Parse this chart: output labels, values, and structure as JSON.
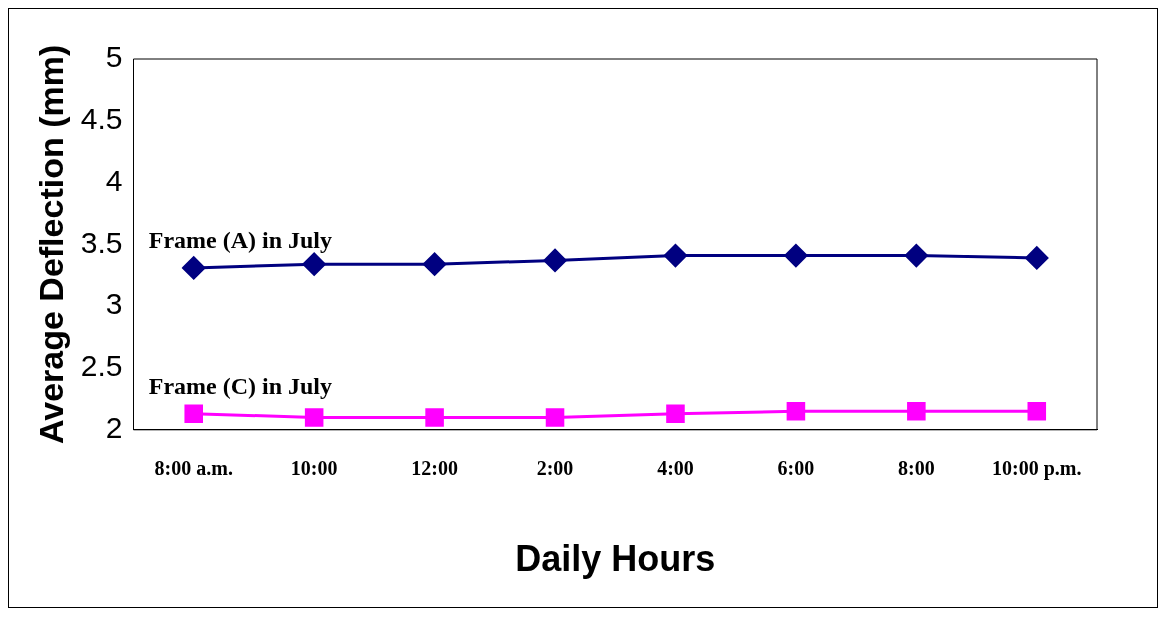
{
  "chart_data": {
    "type": "line",
    "xlabel": "Daily Hours",
    "ylabel": "Average Deflection (mm)",
    "categories": [
      "8:00 a.m.",
      "10:00",
      "12:00",
      "2:00",
      "4:00",
      "6:00",
      "8:00",
      "10:00 p.m."
    ],
    "series": [
      {
        "name": "Frame (A) in July",
        "color": "#000080",
        "marker": "diamond",
        "values": [
          3.31,
          3.34,
          3.34,
          3.37,
          3.41,
          3.41,
          3.41,
          3.39
        ]
      },
      {
        "name": "Frame (C) in July",
        "color": "#ff00ff",
        "marker": "square",
        "values": [
          2.13,
          2.1,
          2.1,
          2.1,
          2.13,
          2.15,
          2.15,
          2.15
        ]
      }
    ],
    "ylim": [
      2,
      5
    ],
    "yticks": [
      2,
      2.5,
      3,
      3.5,
      4,
      4.5,
      5
    ],
    "grid": false,
    "legend": false
  }
}
